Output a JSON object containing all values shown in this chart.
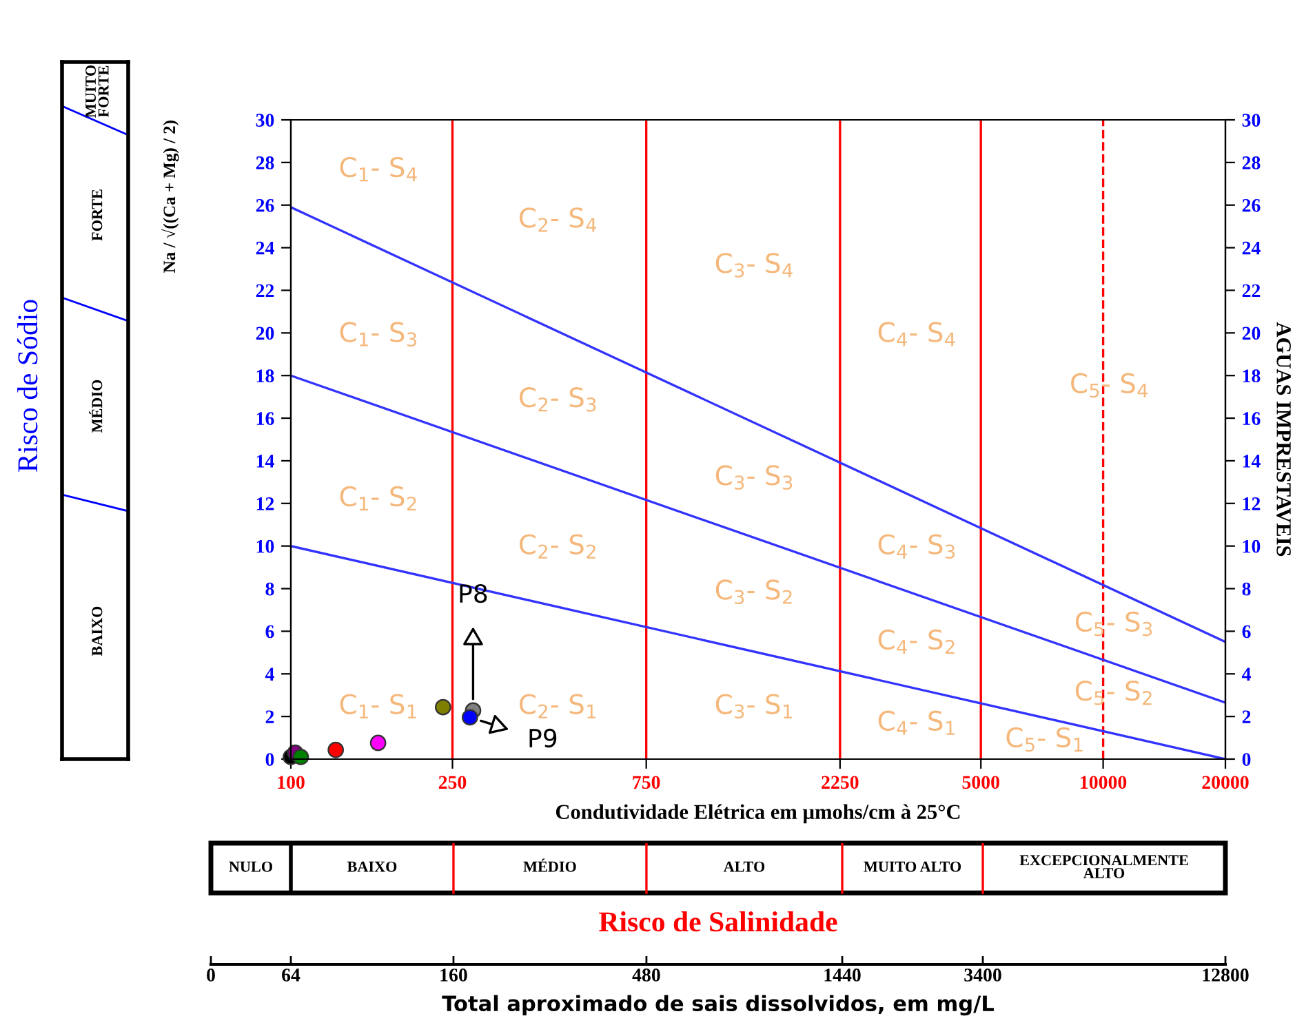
{
  "chart_data": [
    {
      "type": "scatter",
      "xlabel": "Condutividade Elétrica em µmohs/cm à 25°C",
      "ylabel": "Na / √((Ca + Mg) / 2)",
      "y2label": "AGUAS IMPRESTAVEIS",
      "log": "x",
      "xlim": [
        100,
        20000
      ],
      "xticks": [
        100,
        250,
        750,
        2250,
        5000,
        10000,
        20000
      ],
      "ylim": [
        0,
        30
      ],
      "yticks": [
        0,
        2,
        4,
        6,
        8,
        10,
        12,
        14,
        16,
        18,
        20,
        22,
        24,
        26,
        28,
        30
      ],
      "y2lim": [
        0,
        30
      ],
      "y2ticks": [
        0,
        2,
        4,
        6,
        8,
        10,
        12,
        14,
        16,
        18,
        20,
        22,
        24,
        26,
        28,
        30
      ],
      "grid": false,
      "legend": false,
      "marker": "circle",
      "series": [
        {
          "type": "line",
          "color": "#3333ff",
          "x": [
            100,
            20000
          ],
          "values": [
            10,
            0
          ],
          "marker": "none"
        },
        {
          "type": "line",
          "color": "#3333ff",
          "x": [
            100,
            20000
          ],
          "values": [
            18,
            2.65
          ],
          "marker": "none"
        },
        {
          "type": "line",
          "color": "#3333ff",
          "x": [
            100,
            20000
          ],
          "values": [
            25.9,
            5.5
          ],
          "marker": "none"
        },
        {
          "x": [
            100,
            102.5,
            105.8,
            129,
            164,
            237,
            281,
            276
          ],
          "values": [
            0.1,
            0.3,
            0.1,
            0.43,
            0.76,
            2.44,
            2.28,
            1.96
          ],
          "colors": [
            "#000000",
            "#800080",
            "#008000",
            "#ff0000",
            "#ff00ff",
            "#808000",
            "#808080",
            "#0000ff"
          ]
        }
      ],
      "ref_lines": [
        {
          "axis": "x",
          "value": 250,
          "color": "#ff0000",
          "line_style": "solid"
        },
        {
          "axis": "x",
          "value": 750,
          "color": "#ff0000",
          "line_style": "solid"
        },
        {
          "axis": "x",
          "value": 2250,
          "color": "#ff0000",
          "line_style": "solid"
        },
        {
          "axis": "x",
          "value": 5000,
          "color": "#ff0000",
          "line_style": "solid"
        },
        {
          "axis": "x",
          "value": 10000,
          "color": "#ff0000",
          "line_style": "dashed"
        }
      ],
      "annotations": [
        "C$_{1}$- S$_{4}$",
        "C$_{2}$- S$_{4}$",
        "C$_{3}$- S$_{4}$",
        "C$_{4}$- S$_{4}$",
        "C$_{5}$- S$_{4}$",
        "C$_{1}$- S$_{3}$",
        "C$_{2}$- S$_{3}$",
        "C$_{3}$- S$_{3}$",
        "C$_{4}$- S$_{3}$",
        "C$_{5}$- S$_{3}$",
        "C$_{1}$- S$_{2}$",
        "C$_{2}$- S$_{2}$",
        "C$_{3}$- S$_{2}$",
        "C$_{4}$- S$_{2}$",
        "C$_{5}$- S$_{2}$",
        "C$_{1}$- S$_{1}$",
        "C$_{2}$- S$_{1}$",
        "C$_{3}$- S$_{1}$",
        "C$_{4}$- S$_{1}$",
        "C$_{5}$- S$_{1}$",
        {
          "text": "P8",
          "x": 281,
          "y": 2.28
        },
        {
          "text": "P9",
          "x": 276,
          "y": 1.96
        }
      ]
    },
    {
      "type": "other",
      "title": "Risco de Salinidade",
      "categories": [
        "NULO",
        "BAIXO",
        "MÉDIO",
        "ALTO",
        "MUITO ALTO",
        "EXCEPCIONALMENTE ALTO"
      ],
      "xlabel": "Total aproximado de sais dissolvidos, em mg/L",
      "annotations": [
        "0",
        "64",
        "160",
        "480",
        "1440",
        "3400",
        "12800"
      ]
    },
    {
      "type": "other",
      "ylabel": "Risco de Sódio",
      "categories": [
        "MUITO FORTE",
        "FORTE",
        "MÉDIO",
        "BAIXO"
      ]
    }
  ]
}
